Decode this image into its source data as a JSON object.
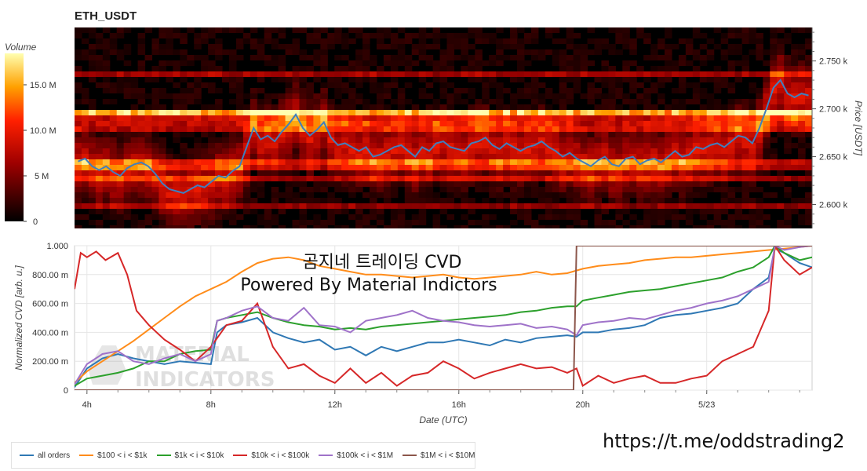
{
  "title": "ETH_USDT",
  "overlay": {
    "line1": "곰지네 트레이딩 CVD",
    "line2": "Powered By Material Indictors",
    "watermark_line1": "MATERIAL",
    "watermark_line2": "INDICATORS",
    "url": "https://t.me/oddstrading2"
  },
  "colorbar": {
    "label": "Volume",
    "ticks": [
      "15.0 M",
      "10.0 M",
      "5 M",
      "0"
    ]
  },
  "colors": {
    "all orders": "#2f78b4",
    "$100 < i < $1k": "#ff8c1a",
    "$1k < i < $10k": "#2ca02c",
    "$10k < i < $100k": "#d62728",
    "$100k < i < $1M": "#9f72c9",
    "$1M < i < $10M": "#8c564b"
  },
  "chart_data": [
    {
      "type": "heatmap",
      "title": "ETH_USDT",
      "ylabel": "Price [USDT]",
      "yticks": [
        "2.750 k",
        "2.700 k",
        "2.650 k",
        "2.600 k"
      ],
      "yrange": [
        2575,
        2785
      ],
      "colorbar_range": [
        0,
        19
      ],
      "price_line": [
        2645,
        2648,
        2640,
        2636,
        2640,
        2634,
        2630,
        2638,
        2642,
        2644,
        2640,
        2632,
        2622,
        2616,
        2614,
        2612,
        2616,
        2620,
        2618,
        2624,
        2630,
        2628,
        2635,
        2640,
        2660,
        2680,
        2668,
        2672,
        2666,
        2676,
        2684,
        2694,
        2680,
        2672,
        2678,
        2686,
        2670,
        2662,
        2664,
        2660,
        2656,
        2660,
        2650,
        2652,
        2656,
        2660,
        2662,
        2656,
        2650,
        2660,
        2656,
        2664,
        2666,
        2660,
        2658,
        2656,
        2664,
        2666,
        2670,
        2662,
        2658,
        2664,
        2660,
        2656,
        2660,
        2662,
        2666,
        2660,
        2656,
        2650,
        2654,
        2648,
        2644,
        2640,
        2646,
        2650,
        2642,
        2640,
        2648,
        2650,
        2642,
        2646,
        2648,
        2644,
        2650,
        2656,
        2650,
        2652,
        2660,
        2658,
        2662,
        2664,
        2660,
        2666,
        2672,
        2670,
        2664,
        2680,
        2700,
        2722,
        2730,
        2716,
        2712,
        2716,
        2714
      ],
      "bands": [
        {
          "price": 2700,
          "intensity": 0.93
        },
        {
          "price": 2690,
          "intensity": 0.45
        },
        {
          "price": 2680,
          "intensity": 0.38
        },
        {
          "price": 2648,
          "intensity": 0.42
        },
        {
          "price": 2640,
          "intensity": 0.35
        },
        {
          "price": 2630,
          "intensity": 0.32
        },
        {
          "price": 2600,
          "intensity": 0.3
        },
        {
          "price": 2740,
          "intensity": 0.36
        }
      ]
    },
    {
      "type": "line",
      "xlabel": "Date (UTC)",
      "ylabel": "Normalized CVD [arb. u.]",
      "ylim": [
        0,
        1
      ],
      "yticks": [
        "0",
        "200.00 m",
        "400.00 m",
        "600.00 m",
        "800.00 m",
        "1.000"
      ],
      "x_ticks": [
        {
          "label": "4h",
          "t": 4
        },
        {
          "label": "8h",
          "t": 8
        },
        {
          "label": "12h",
          "t": 12
        },
        {
          "label": "16h",
          "t": 16
        },
        {
          "label": "20h",
          "t": 20
        },
        {
          "label": "5/23",
          "t": 24
        }
      ],
      "x_range": [
        3.6,
        27.4
      ],
      "series": [
        {
          "name": "all orders",
          "x": [
            3.6,
            4,
            4.5,
            5,
            5.5,
            6,
            6.5,
            7,
            7.5,
            8,
            8.2,
            8.5,
            9,
            9.5,
            10,
            10.5,
            11,
            11.5,
            12,
            12.5,
            13,
            13.5,
            14,
            14.5,
            15,
            15.5,
            16,
            16.5,
            17,
            17.5,
            18,
            18.5,
            19,
            19.5,
            19.8,
            20,
            20.5,
            21,
            21.5,
            22,
            22.5,
            23,
            23.5,
            24,
            24.5,
            25,
            25.5,
            26,
            26.2,
            26.5,
            27,
            27.4
          ],
          "values": [
            0.02,
            0.15,
            0.22,
            0.25,
            0.22,
            0.2,
            0.18,
            0.2,
            0.19,
            0.18,
            0.4,
            0.45,
            0.47,
            0.5,
            0.4,
            0.36,
            0.33,
            0.35,
            0.28,
            0.3,
            0.24,
            0.3,
            0.27,
            0.3,
            0.33,
            0.33,
            0.35,
            0.33,
            0.31,
            0.35,
            0.33,
            0.36,
            0.37,
            0.38,
            0.37,
            0.4,
            0.4,
            0.42,
            0.43,
            0.45,
            0.5,
            0.52,
            0.53,
            0.55,
            0.57,
            0.6,
            0.7,
            0.78,
            0.98,
            0.95,
            0.88,
            0.85
          ]
        },
        {
          "name": "$100 < i < $1k",
          "x": [
            3.6,
            4,
            4.5,
            5,
            5.5,
            6,
            6.5,
            7,
            7.5,
            8,
            8.5,
            9,
            9.5,
            10,
            10.5,
            11,
            11.5,
            12,
            12.5,
            13,
            13.5,
            14,
            14.5,
            15,
            15.5,
            16,
            16.5,
            17,
            17.5,
            18,
            18.5,
            19,
            19.5,
            20,
            20.5,
            21,
            21.5,
            22,
            22.5,
            23,
            23.5,
            24,
            24.5,
            25,
            25.5,
            26,
            26.5,
            27,
            27.4
          ],
          "values": [
            0.05,
            0.13,
            0.2,
            0.27,
            0.34,
            0.42,
            0.5,
            0.58,
            0.65,
            0.7,
            0.75,
            0.82,
            0.88,
            0.91,
            0.92,
            0.9,
            0.86,
            0.84,
            0.82,
            0.8,
            0.8,
            0.79,
            0.78,
            0.79,
            0.8,
            0.78,
            0.77,
            0.78,
            0.79,
            0.8,
            0.82,
            0.8,
            0.81,
            0.84,
            0.86,
            0.87,
            0.88,
            0.9,
            0.91,
            0.92,
            0.92,
            0.93,
            0.94,
            0.95,
            0.96,
            0.97,
            0.98,
            0.99,
            1.0
          ]
        },
        {
          "name": "$1k < i < $10k",
          "x": [
            3.6,
            4,
            4.5,
            5,
            5.5,
            6,
            6.5,
            7,
            7.5,
            8,
            8.2,
            8.5,
            9,
            9.5,
            10,
            10.5,
            11,
            11.5,
            12,
            12.5,
            13,
            13.5,
            14,
            14.5,
            15,
            15.5,
            16,
            16.5,
            17,
            17.5,
            18,
            18.5,
            19,
            19.5,
            19.8,
            20,
            20.5,
            21,
            21.5,
            22,
            22.5,
            23,
            23.5,
            24,
            24.5,
            25,
            25.5,
            26,
            26.2,
            26.5,
            27,
            27.4
          ],
          "values": [
            0.03,
            0.08,
            0.1,
            0.12,
            0.15,
            0.2,
            0.2,
            0.25,
            0.27,
            0.28,
            0.48,
            0.5,
            0.52,
            0.54,
            0.5,
            0.47,
            0.45,
            0.44,
            0.42,
            0.43,
            0.42,
            0.44,
            0.45,
            0.46,
            0.47,
            0.48,
            0.49,
            0.5,
            0.51,
            0.52,
            0.54,
            0.55,
            0.57,
            0.58,
            0.58,
            0.62,
            0.64,
            0.66,
            0.68,
            0.69,
            0.7,
            0.72,
            0.74,
            0.76,
            0.78,
            0.82,
            0.85,
            0.92,
            1.0,
            0.95,
            0.9,
            0.92
          ]
        },
        {
          "name": "$10k < i < $100k",
          "x": [
            3.6,
            3.8,
            4,
            4.3,
            4.6,
            5,
            5.3,
            5.6,
            6,
            6.5,
            7,
            7.5,
            8,
            8.5,
            9,
            9.5,
            10,
            10.5,
            11,
            11.5,
            12,
            12.5,
            13,
            13.5,
            14,
            14.5,
            15,
            15.5,
            16,
            16.5,
            17,
            17.5,
            18,
            18.5,
            19,
            19.5,
            19.8,
            20,
            20.5,
            21,
            21.5,
            22,
            22.5,
            23,
            23.5,
            24,
            24.5,
            25,
            25.5,
            26,
            26.2,
            26.5,
            27,
            27.4
          ],
          "values": [
            0.7,
            0.95,
            0.92,
            0.96,
            0.9,
            0.95,
            0.8,
            0.55,
            0.45,
            0.35,
            0.28,
            0.2,
            0.3,
            0.45,
            0.48,
            0.6,
            0.3,
            0.15,
            0.18,
            0.1,
            0.05,
            0.15,
            0.05,
            0.12,
            0.03,
            0.1,
            0.12,
            0.2,
            0.15,
            0.08,
            0.12,
            0.15,
            0.18,
            0.15,
            0.16,
            0.12,
            0.15,
            0.03,
            0.1,
            0.05,
            0.08,
            0.1,
            0.05,
            0.05,
            0.08,
            0.1,
            0.2,
            0.25,
            0.3,
            0.55,
            1.0,
            0.9,
            0.8,
            0.85
          ]
        },
        {
          "name": "$100k < i < $1M",
          "x": [
            3.6,
            4,
            4.5,
            5,
            5.5,
            6,
            6.5,
            7,
            7.5,
            8,
            8.2,
            8.5,
            9,
            9.5,
            10,
            10.5,
            11,
            11.5,
            12,
            12.5,
            13,
            13.5,
            14,
            14.5,
            15,
            15.5,
            16,
            16.5,
            17,
            17.5,
            18,
            18.5,
            19,
            19.5,
            19.8,
            20,
            20.5,
            21,
            21.5,
            22,
            22.5,
            23,
            23.5,
            24,
            24.5,
            25,
            25.5,
            26,
            26.2,
            26.5,
            27,
            27.4
          ],
          "values": [
            0.04,
            0.18,
            0.25,
            0.27,
            0.2,
            0.18,
            0.22,
            0.25,
            0.2,
            0.25,
            0.48,
            0.5,
            0.55,
            0.58,
            0.5,
            0.48,
            0.57,
            0.45,
            0.44,
            0.4,
            0.48,
            0.5,
            0.52,
            0.55,
            0.5,
            0.48,
            0.47,
            0.45,
            0.44,
            0.45,
            0.46,
            0.43,
            0.44,
            0.42,
            0.38,
            0.45,
            0.47,
            0.48,
            0.5,
            0.49,
            0.52,
            0.55,
            0.57,
            0.6,
            0.62,
            0.65,
            0.7,
            0.75,
            1.0,
            0.97,
            0.99,
            1.0
          ]
        },
        {
          "name": "$1M < i < $10M",
          "x": [
            3.6,
            19.7,
            19.8,
            27.4
          ],
          "values": [
            0.0,
            0.0,
            1.0,
            1.0
          ]
        }
      ]
    }
  ]
}
